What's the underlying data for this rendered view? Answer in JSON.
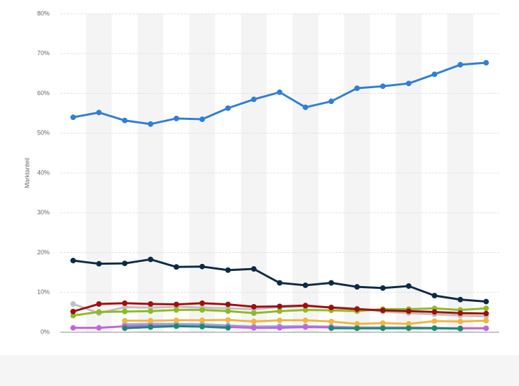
{
  "chart_data": {
    "type": "line",
    "y_label": "Marktanteil",
    "categories": [
      null,
      null,
      null,
      null,
      null,
      null,
      null,
      null,
      null,
      null,
      null,
      null,
      null,
      null,
      null,
      null,
      null
    ],
    "ylim": [
      0,
      80
    ],
    "yticks": [
      {
        "value": 0,
        "label": "0%"
      },
      {
        "value": 10,
        "label": "10%"
      },
      {
        "value": 20,
        "label": "20%"
      },
      {
        "value": 30,
        "label": "30%"
      },
      {
        "value": 40,
        "label": "40%"
      },
      {
        "value": 50,
        "label": "50%"
      },
      {
        "value": 60,
        "label": "60%"
      },
      {
        "value": 70,
        "label": "70%"
      },
      {
        "value": 80,
        "label": "80%"
      }
    ],
    "grid": true,
    "series": [
      {
        "color": "#c0c0c0",
        "values": [
          7.1,
          4.8,
          6.3,
          6.2,
          6.4,
          6.2,
          6.0,
          5.8,
          6.3,
          6.5,
          6.3,
          6.0,
          5.2,
          4.8,
          4.5,
          4.2,
          4.0
        ]
      },
      {
        "color": "#8aa9e6",
        "values": [
          null,
          null,
          2.0,
          2.1,
          2.1,
          2.0,
          1.7,
          1.4,
          1.5,
          1.5,
          1.4,
          1.2,
          1.2,
          1.2,
          1.1,
          1.0,
          1.0
        ]
      },
      {
        "color": "#c364d8",
        "values": [
          1.1,
          1.1,
          1.5,
          1.6,
          1.6,
          1.5,
          1.3,
          1.1,
          1.1,
          1.3,
          1.2,
          1.0,
          1.0,
          1.1,
          1.0,
          1.0,
          1.0
        ]
      },
      {
        "color": "#f0b63c",
        "values": [
          null,
          null,
          2.9,
          2.9,
          3.0,
          3.0,
          3.1,
          2.7,
          3.0,
          3.0,
          2.7,
          2.1,
          2.3,
          2.1,
          2.8,
          2.7,
          2.9
        ]
      },
      {
        "color": "#1a8a6e",
        "values": [
          null,
          null,
          1.0,
          1.3,
          1.5,
          1.4,
          1.1,
          null,
          null,
          null,
          1.0,
          1.0,
          1.0,
          1.0,
          1.0,
          0.9,
          null
        ]
      },
      {
        "color": "#8bbc21",
        "values": [
          4.2,
          5.1,
          5.2,
          5.3,
          5.6,
          5.6,
          5.3,
          4.8,
          5.3,
          5.6,
          5.5,
          5.3,
          5.8,
          5.8,
          6.0,
          5.6,
          6.0
        ]
      },
      {
        "color": "#a30d0d",
        "values": [
          5.2,
          7.1,
          7.3,
          7.1,
          7.0,
          7.3,
          7.0,
          6.4,
          6.5,
          6.7,
          6.2,
          5.8,
          5.5,
          5.3,
          5.1,
          4.8,
          4.7
        ]
      },
      {
        "color": "#0d2a47",
        "values": [
          18.0,
          17.2,
          17.3,
          18.3,
          16.4,
          16.5,
          15.6,
          15.9,
          12.4,
          11.8,
          12.4,
          11.4,
          11.1,
          11.6,
          9.2,
          8.2,
          7.7
        ]
      },
      {
        "color": "#2f7ed8",
        "values": [
          54.0,
          55.2,
          53.2,
          52.3,
          53.7,
          53.5,
          56.3,
          58.5,
          60.3,
          56.5,
          58.0,
          61.3,
          61.8,
          62.5,
          64.8,
          67.2,
          67.7
        ]
      }
    ]
  }
}
